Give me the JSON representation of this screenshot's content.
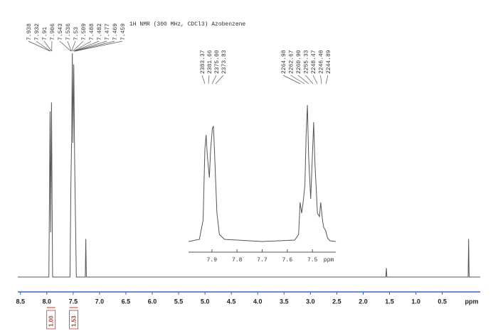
{
  "chart_data": [
    {
      "type": "line",
      "title": "1H NMR (300 MHz, CDCl3) Azobenzene",
      "xlabel": "ppm",
      "xlim": [
        8.55,
        -0.22
      ],
      "xticks": [
        8.5,
        {
          "value": 8,
          "label": "8.0"
        },
        7.5,
        {
          "value": 7,
          "label": "7.0"
        },
        6.5,
        {
          "value": 6,
          "label": "6.0"
        },
        5.5,
        {
          "value": 5,
          "label": "5.0"
        },
        4.5,
        {
          "value": 4,
          "label": "4.0"
        },
        3.5,
        {
          "value": 3,
          "label": "3.0"
        },
        2.5,
        {
          "value": 2,
          "label": "2.0"
        },
        1.5,
        {
          "value": 1,
          "label": "1.0"
        },
        0.5
      ],
      "color": "#555555",
      "x": [
        8.55,
        7.96,
        7.938,
        7.925,
        7.91,
        7.89,
        7.56,
        7.543,
        7.53,
        7.515,
        7.505,
        7.488,
        7.47,
        7.459,
        7.44,
        7.27,
        7.26,
        7.25,
        1.57,
        1.56,
        1.55,
        0.01,
        0,
        -0.01,
        -0.22
      ],
      "values": [
        0,
        0,
        74,
        20,
        78,
        0,
        0,
        40,
        60,
        100,
        60,
        95,
        50,
        30,
        0,
        0,
        17,
        0,
        0,
        4,
        0,
        0,
        17,
        0,
        0
      ],
      "peak_labels": [
        7.938,
        7.932,
        7.91,
        7.906,
        7.543,
        7.536,
        7.53,
        7.509,
        7.488,
        7.482,
        7.477,
        7.469,
        7.459
      ],
      "integral_x": [
        7.92,
        7.49
      ],
      "integrals": [
        {
          "value": 1,
          "label": "1.00"
        },
        {
          "value": 1.53,
          "label": "1.53"
        }
      ]
    },
    {
      "type": "line",
      "xlabel": "ppm",
      "xlim": [
        7.993,
        7.407
      ],
      "xticks": [
        7.9,
        7.8,
        7.7,
        7.6,
        7.5
      ],
      "color": "#555555",
      "x": [
        7.993,
        7.95,
        7.935,
        7.928,
        7.923,
        7.918,
        7.91,
        7.905,
        7.898,
        7.894,
        7.89,
        7.88,
        7.87,
        7.85,
        7.7,
        7.57,
        7.555,
        7.549,
        7.543,
        7.537,
        7.53,
        7.525,
        7.52,
        7.515,
        7.507,
        7.5,
        7.495,
        7.49,
        7.48,
        7.472,
        7.467,
        7.46,
        7.455,
        7.447,
        7.44,
        7.43,
        7.407
      ],
      "values": [
        0,
        3,
        30,
        130,
        150,
        120,
        90,
        130,
        160,
        162,
        130,
        40,
        10,
        3,
        0,
        2,
        10,
        55,
        40,
        55,
        80,
        150,
        192,
        120,
        60,
        120,
        168,
        110,
        40,
        35,
        55,
        30,
        20,
        15,
        5,
        1,
        0
      ],
      "peak_labels": [
        "2383.37",
        "2381.66",
        "2375.00",
        "2373.83",
        "2264.98",
        "2262.67",
        "2260.90",
        "2255.33",
        "2248.47",
        "2246.40",
        "2244.89"
      ]
    }
  ]
}
